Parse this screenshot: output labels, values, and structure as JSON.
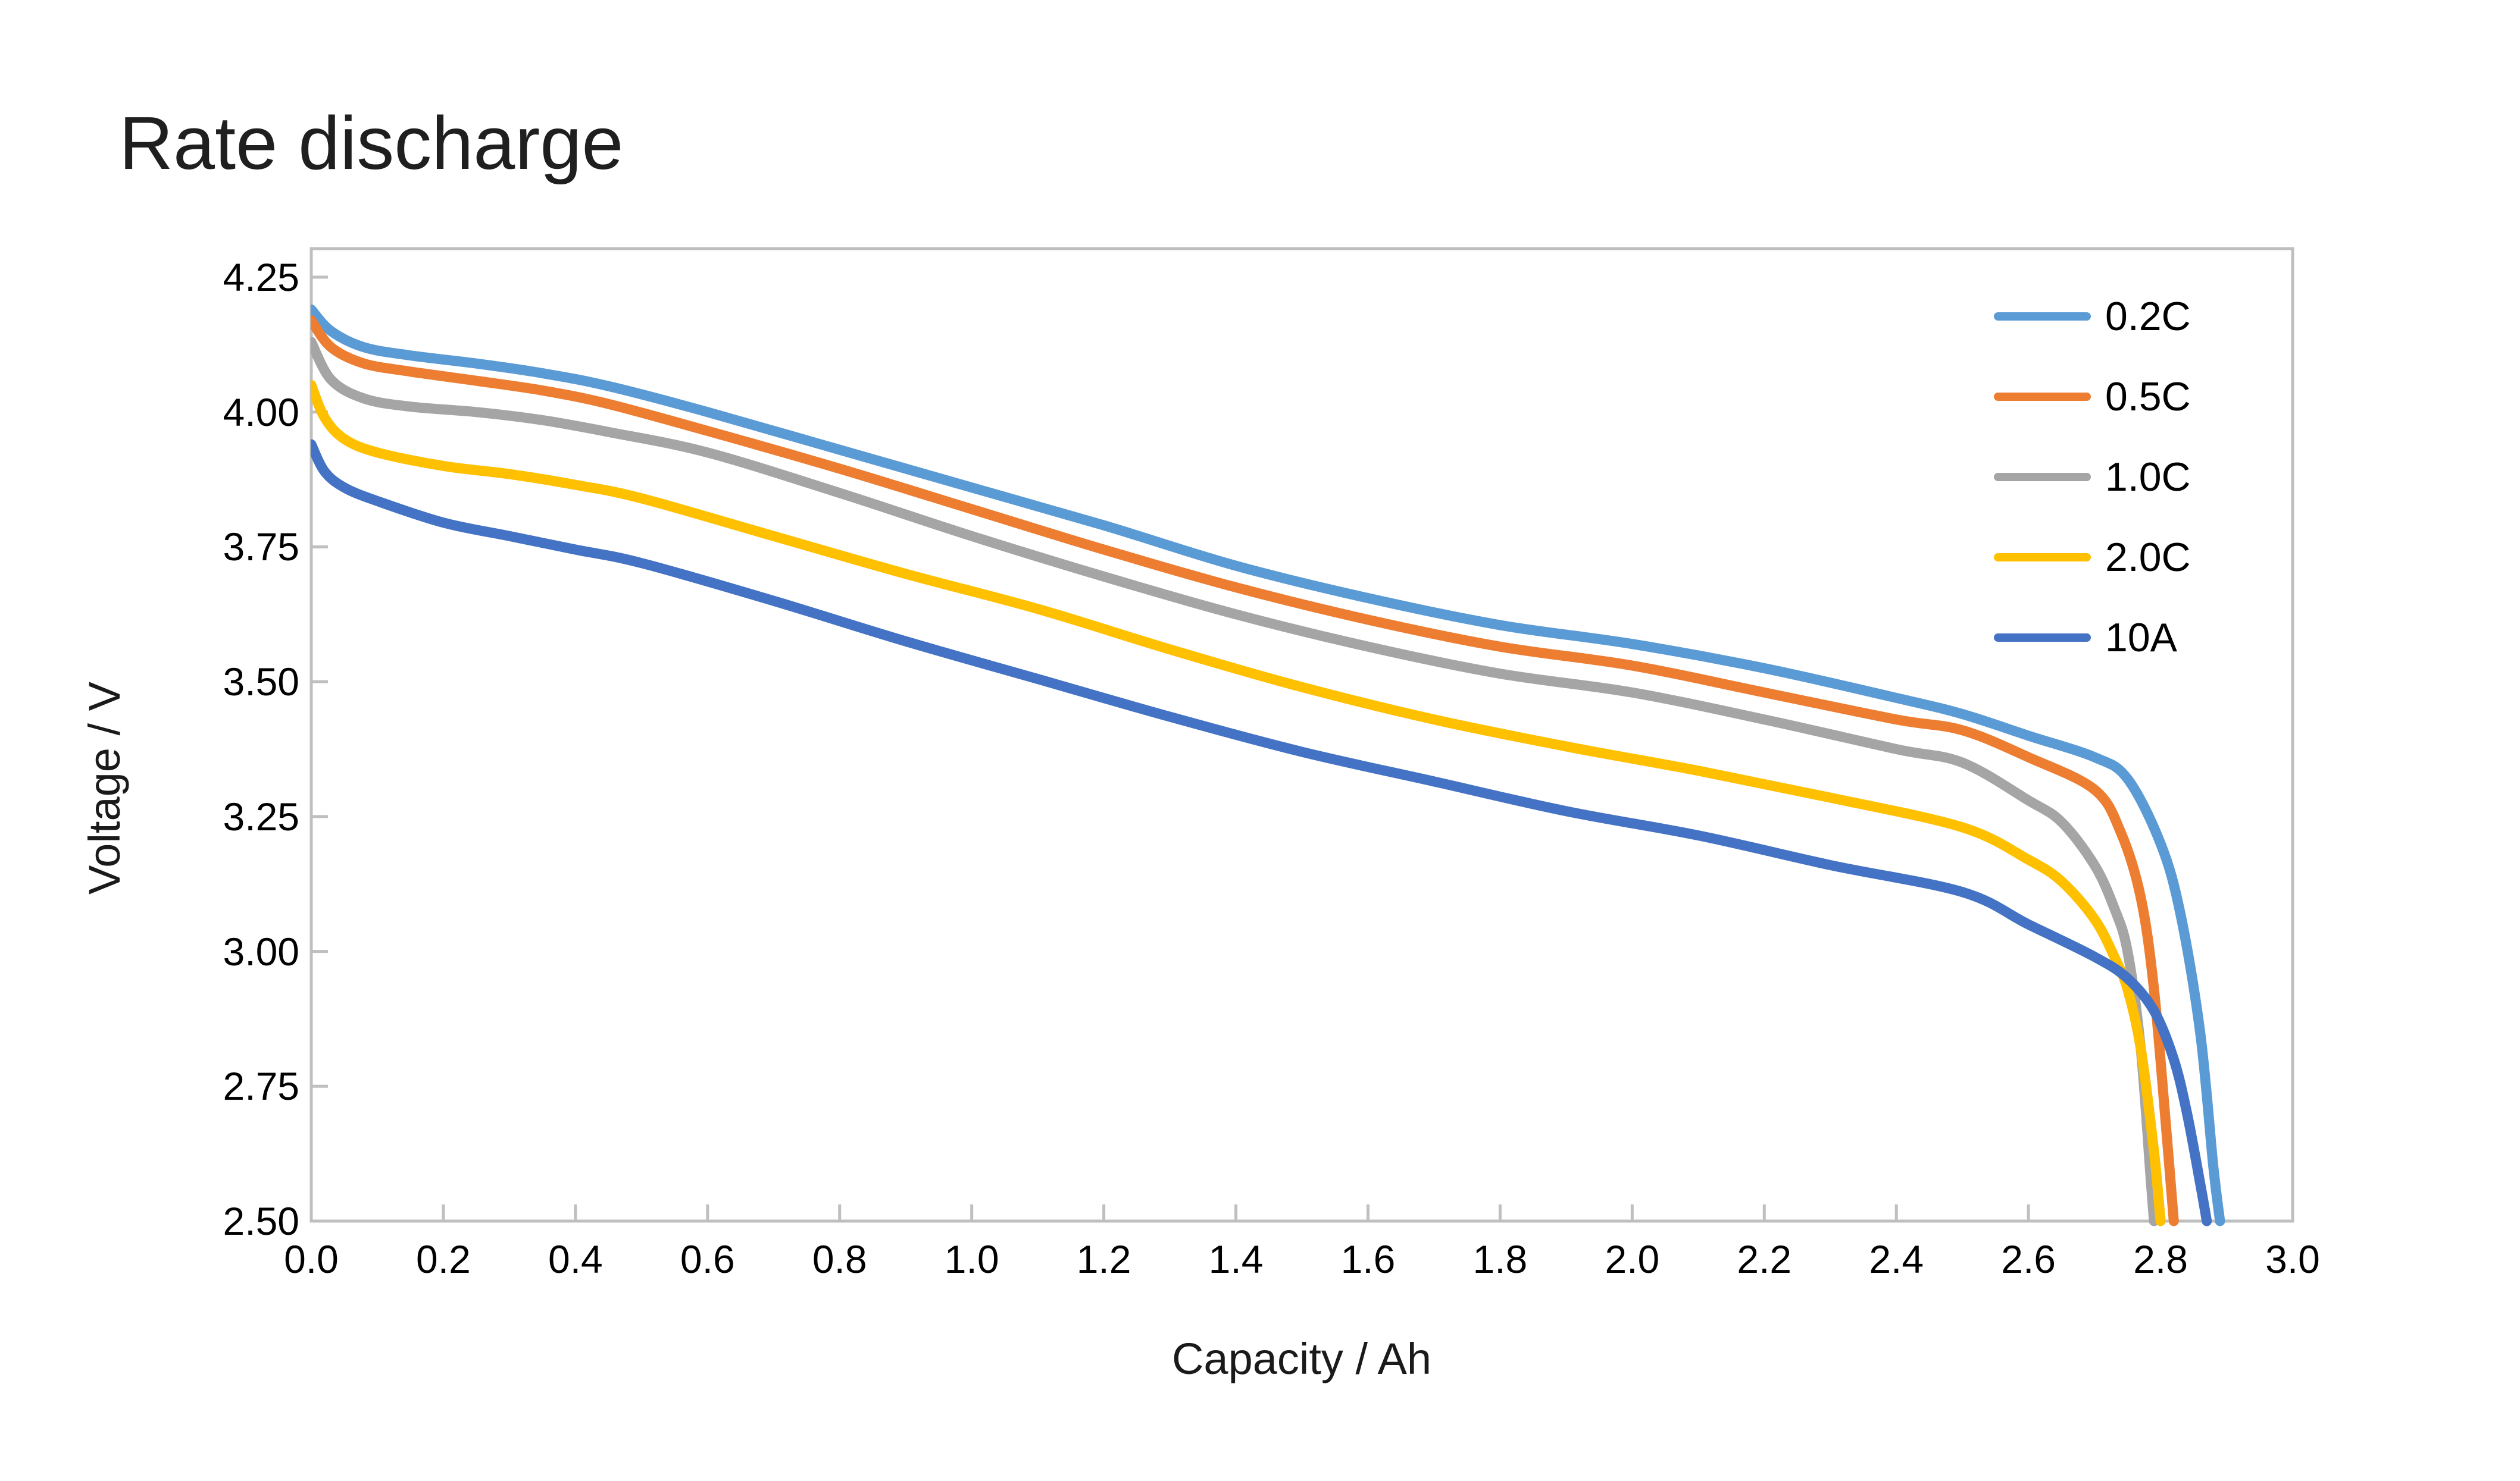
{
  "title": "Rate discharge",
  "colors": {
    "title_text": "#1f1f1f",
    "tick_text": "#000000",
    "axis_line": "#BFBFBF",
    "background": "#ffffff"
  },
  "chart_data": {
    "type": "line",
    "title": "Rate discharge",
    "xlabel": "Capacity / Ah",
    "ylabel": "Voltage / V",
    "xlim": [
      0.0,
      3.0
    ],
    "ylim": [
      2.5,
      4.25
    ],
    "grid": false,
    "legend_position": "inside-top-right",
    "x_ticks": [
      "0.0",
      "0.2",
      "0.4",
      "0.6",
      "0.8",
      "1.0",
      "1.2",
      "1.4",
      "1.6",
      "1.8",
      "2.0",
      "2.2",
      "2.4",
      "2.6",
      "2.8",
      "3.0"
    ],
    "y_ticks": [
      "2.50",
      "2.75",
      "3.00",
      "3.25",
      "3.50",
      "3.75",
      "4.00",
      "4.25"
    ],
    "series": [
      {
        "name": "0.2C",
        "color": "#5B9BD5",
        "points": [
          [
            0,
            4.19
          ],
          [
            0.03,
            4.15
          ],
          [
            0.08,
            4.12
          ],
          [
            0.15,
            4.105
          ],
          [
            0.25,
            4.09
          ],
          [
            0.35,
            4.072
          ],
          [
            0.45,
            4.048
          ],
          [
            0.6,
            4.0
          ],
          [
            0.8,
            3.93
          ],
          [
            1.0,
            3.86
          ],
          [
            1.2,
            3.79
          ],
          [
            1.4,
            3.715
          ],
          [
            1.6,
            3.655
          ],
          [
            1.8,
            3.605
          ],
          [
            2.0,
            3.57
          ],
          [
            2.2,
            3.525
          ],
          [
            2.4,
            3.47
          ],
          [
            2.5,
            3.44
          ],
          [
            2.6,
            3.4
          ],
          [
            2.7,
            3.36
          ],
          [
            2.75,
            3.32
          ],
          [
            2.8,
            3.2
          ],
          [
            2.83,
            3.07
          ],
          [
            2.86,
            2.85
          ],
          [
            2.88,
            2.6
          ],
          [
            2.89,
            2.5
          ]
        ]
      },
      {
        "name": "0.5C",
        "color": "#ED7D31",
        "points": [
          [
            0,
            4.17
          ],
          [
            0.03,
            4.12
          ],
          [
            0.08,
            4.09
          ],
          [
            0.15,
            4.075
          ],
          [
            0.25,
            4.058
          ],
          [
            0.35,
            4.04
          ],
          [
            0.45,
            4.015
          ],
          [
            0.6,
            3.965
          ],
          [
            0.8,
            3.895
          ],
          [
            1.0,
            3.82
          ],
          [
            1.2,
            3.745
          ],
          [
            1.4,
            3.675
          ],
          [
            1.6,
            3.615
          ],
          [
            1.8,
            3.565
          ],
          [
            2.0,
            3.53
          ],
          [
            2.2,
            3.48
          ],
          [
            2.4,
            3.43
          ],
          [
            2.5,
            3.41
          ],
          [
            2.6,
            3.36
          ],
          [
            2.7,
            3.3
          ],
          [
            2.74,
            3.22
          ],
          [
            2.77,
            3.1
          ],
          [
            2.79,
            2.93
          ],
          [
            2.81,
            2.65
          ],
          [
            2.82,
            2.5
          ]
        ]
      },
      {
        "name": "1.0C",
        "color": "#A5A5A5",
        "points": [
          [
            0,
            4.13
          ],
          [
            0.03,
            4.06
          ],
          [
            0.08,
            4.025
          ],
          [
            0.15,
            4.01
          ],
          [
            0.25,
            4.0
          ],
          [
            0.35,
            3.985
          ],
          [
            0.45,
            3.963
          ],
          [
            0.6,
            3.925
          ],
          [
            0.8,
            3.85
          ],
          [
            1.0,
            3.77
          ],
          [
            1.2,
            3.695
          ],
          [
            1.4,
            3.625
          ],
          [
            1.6,
            3.565
          ],
          [
            1.8,
            3.515
          ],
          [
            2.0,
            3.48
          ],
          [
            2.2,
            3.43
          ],
          [
            2.4,
            3.375
          ],
          [
            2.5,
            3.35
          ],
          [
            2.6,
            3.28
          ],
          [
            2.65,
            3.24
          ],
          [
            2.7,
            3.16
          ],
          [
            2.73,
            3.08
          ],
          [
            2.75,
            3.0
          ],
          [
            2.77,
            2.82
          ],
          [
            2.785,
            2.58
          ],
          [
            2.79,
            2.5
          ]
        ]
      },
      {
        "name": "2.0C",
        "color": "#FFC000",
        "points": [
          [
            0,
            4.05
          ],
          [
            0.02,
            3.99
          ],
          [
            0.05,
            3.95
          ],
          [
            0.1,
            3.925
          ],
          [
            0.2,
            3.9
          ],
          [
            0.3,
            3.885
          ],
          [
            0.4,
            3.865
          ],
          [
            0.5,
            3.84
          ],
          [
            0.7,
            3.77
          ],
          [
            0.9,
            3.7
          ],
          [
            1.1,
            3.635
          ],
          [
            1.3,
            3.56
          ],
          [
            1.5,
            3.49
          ],
          [
            1.7,
            3.43
          ],
          [
            1.9,
            3.38
          ],
          [
            2.1,
            3.335
          ],
          [
            2.3,
            3.285
          ],
          [
            2.5,
            3.23
          ],
          [
            2.6,
            3.17
          ],
          [
            2.65,
            3.13
          ],
          [
            2.7,
            3.06
          ],
          [
            2.73,
            2.99
          ],
          [
            2.75,
            2.93
          ],
          [
            2.77,
            2.82
          ],
          [
            2.79,
            2.63
          ],
          [
            2.8,
            2.5
          ]
        ]
      },
      {
        "name": "10A",
        "color": "#4472C4",
        "points": [
          [
            0,
            3.94
          ],
          [
            0.02,
            3.89
          ],
          [
            0.05,
            3.86
          ],
          [
            0.1,
            3.835
          ],
          [
            0.2,
            3.795
          ],
          [
            0.3,
            3.77
          ],
          [
            0.4,
            3.745
          ],
          [
            0.5,
            3.72
          ],
          [
            0.7,
            3.65
          ],
          [
            0.9,
            3.575
          ],
          [
            1.1,
            3.505
          ],
          [
            1.3,
            3.435
          ],
          [
            1.5,
            3.37
          ],
          [
            1.7,
            3.315
          ],
          [
            1.9,
            3.26
          ],
          [
            2.1,
            3.215
          ],
          [
            2.3,
            3.16
          ],
          [
            2.5,
            3.11
          ],
          [
            2.6,
            3.05
          ],
          [
            2.7,
            2.99
          ],
          [
            2.75,
            2.95
          ],
          [
            2.79,
            2.89
          ],
          [
            2.82,
            2.8
          ],
          [
            2.84,
            2.7
          ],
          [
            2.86,
            2.57
          ],
          [
            2.87,
            2.5
          ]
        ]
      }
    ]
  }
}
